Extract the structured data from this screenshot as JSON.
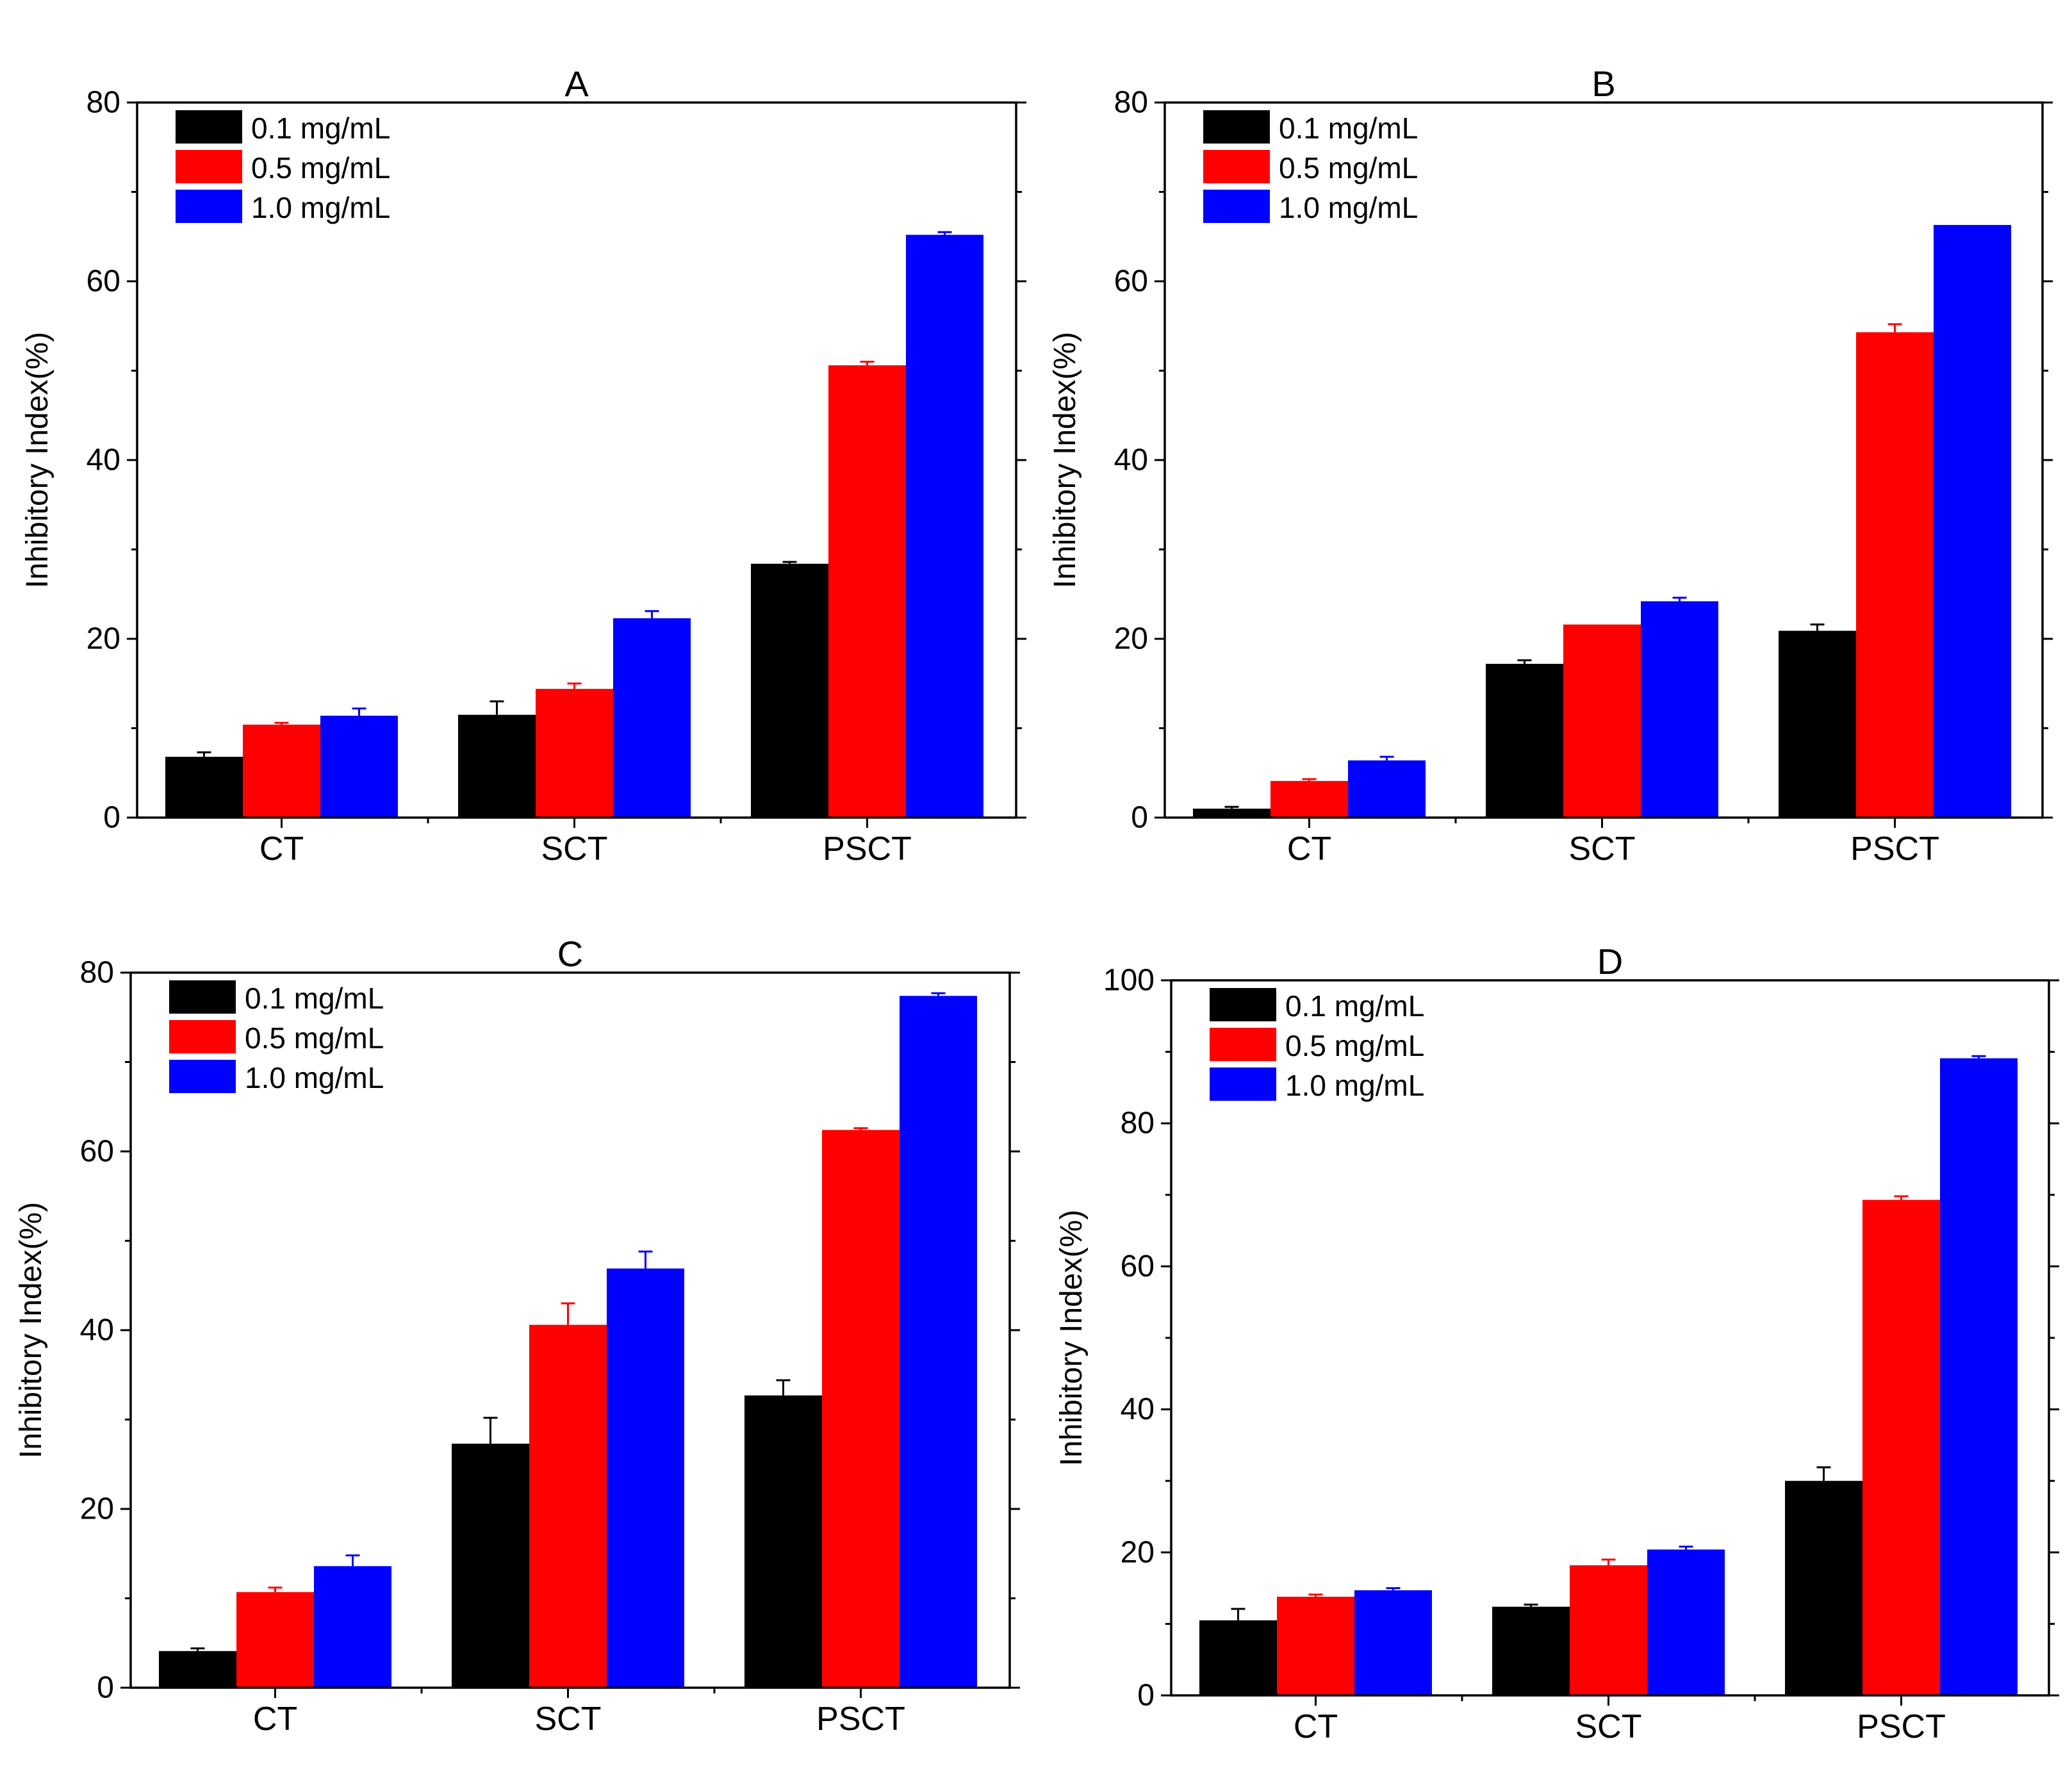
{
  "figure": {
    "series_colors": [
      "#000000",
      "#ff0000",
      "#0000ff"
    ]
  },
  "chart_data": [
    {
      "type": "bar",
      "title": "A",
      "ylabel": "Inhibitory Index(%)",
      "xlabel": "",
      "ylim": [
        0,
        80
      ],
      "yticks": [
        0,
        20,
        40,
        60,
        80
      ],
      "categories": [
        "CT",
        "SCT",
        "PSCT"
      ],
      "legend_position": "top-left",
      "series": [
        {
          "name": "0.1 mg/mL",
          "color": "#000000",
          "values": [
            6.8,
            11.5,
            28.4
          ],
          "errors": [
            0.5,
            1.5,
            0.2
          ]
        },
        {
          "name": "0.5 mg/mL",
          "color": "#ff0000",
          "values": [
            10.4,
            14.4,
            50.6
          ],
          "errors": [
            0.2,
            0.6,
            0.4
          ]
        },
        {
          "name": "1.0 mg/mL",
          "color": "#0000ff",
          "values": [
            11.4,
            22.3,
            65.2
          ],
          "errors": [
            0.8,
            0.8,
            0.3
          ]
        }
      ]
    },
    {
      "type": "bar",
      "title": "B",
      "ylabel": "Inhibitory Index(%)",
      "xlabel": "",
      "ylim": [
        0,
        80
      ],
      "yticks": [
        0,
        20,
        40,
        60,
        80
      ],
      "categories": [
        "CT",
        "SCT",
        "PSCT"
      ],
      "legend_position": "top-left",
      "series": [
        {
          "name": "0.1 mg/mL",
          "color": "#000000",
          "values": [
            1.0,
            17.2,
            20.9
          ],
          "errors": [
            0.2,
            0.4,
            0.7
          ]
        },
        {
          "name": "0.5 mg/mL",
          "color": "#ff0000",
          "values": [
            4.1,
            21.6,
            54.3
          ],
          "errors": [
            0.2,
            0.0,
            0.9
          ]
        },
        {
          "name": "1.0 mg/mL",
          "color": "#0000ff",
          "values": [
            6.4,
            24.2,
            66.3
          ],
          "errors": [
            0.4,
            0.4,
            0.0
          ]
        }
      ]
    },
    {
      "type": "bar",
      "title": "C",
      "ylabel": "Inhibitory Index(%)",
      "xlabel": "",
      "ylim": [
        0,
        80
      ],
      "yticks": [
        0,
        20,
        40,
        60,
        80
      ],
      "categories": [
        "CT",
        "SCT",
        "PSCT"
      ],
      "legend_position": "top-left",
      "series": [
        {
          "name": "0.1 mg/mL",
          "color": "#000000",
          "values": [
            4.1,
            27.3,
            32.7
          ],
          "errors": [
            0.3,
            2.9,
            1.7
          ]
        },
        {
          "name": "0.5 mg/mL",
          "color": "#ff0000",
          "values": [
            10.7,
            40.6,
            62.4
          ],
          "errors": [
            0.5,
            2.4,
            0.2
          ]
        },
        {
          "name": "1.0 mg/mL",
          "color": "#0000ff",
          "values": [
            13.6,
            46.9,
            77.4
          ],
          "errors": [
            1.2,
            1.9,
            0.3
          ]
        }
      ]
    },
    {
      "type": "bar",
      "title": "D",
      "ylabel": "Inhibitory Index(%)",
      "xlabel": "",
      "ylim": [
        0,
        100
      ],
      "yticks": [
        0,
        20,
        40,
        60,
        80,
        100
      ],
      "categories": [
        "CT",
        "SCT",
        "PSCT"
      ],
      "legend_position": "top-left",
      "series": [
        {
          "name": "0.1 mg/mL",
          "color": "#000000",
          "values": [
            10.5,
            12.4,
            30.0
          ],
          "errors": [
            1.6,
            0.3,
            1.9
          ]
        },
        {
          "name": "0.5 mg/mL",
          "color": "#ff0000",
          "values": [
            13.8,
            18.2,
            69.3
          ],
          "errors": [
            0.3,
            0.8,
            0.5
          ]
        },
        {
          "name": "1.0 mg/mL",
          "color": "#0000ff",
          "values": [
            14.7,
            20.4,
            89.1
          ],
          "errors": [
            0.3,
            0.4,
            0.3
          ]
        }
      ]
    }
  ]
}
